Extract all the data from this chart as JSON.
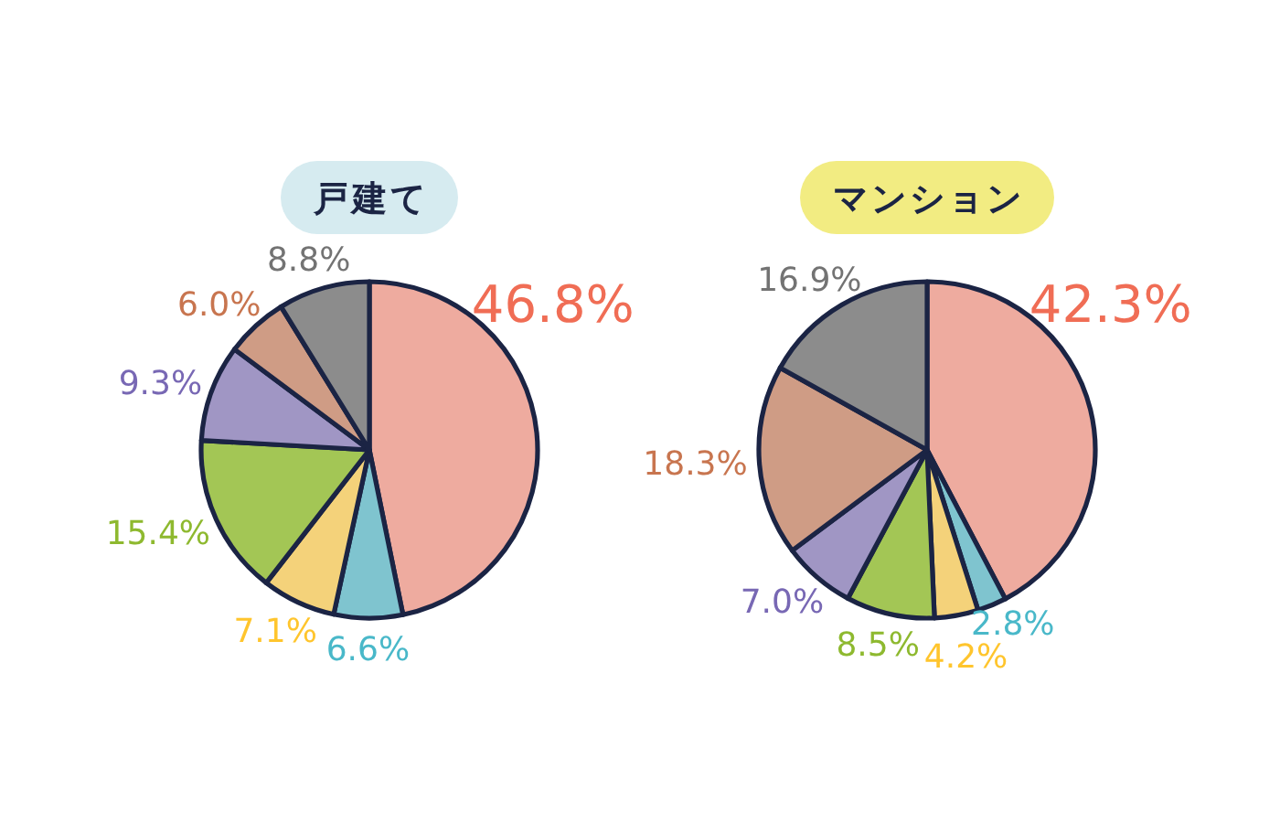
{
  "chart_data": [
    {
      "type": "pie",
      "title": "戸建て",
      "categories": [
        null,
        null,
        null,
        null,
        null,
        null,
        null
      ],
      "values": [
        46.8,
        6.6,
        7.1,
        15.4,
        9.3,
        6.0,
        8.8
      ],
      "colors": [
        "#eeab9f",
        "#7fc4cf",
        "#f4d27a",
        "#a3c655",
        "#a096c4",
        "#cf9c85",
        "#8c8c8c"
      ],
      "value_labels": [
        "46.8%",
        "6.6%",
        "7.1%",
        "15.4%",
        "9.3%",
        "6.0%",
        "8.8%"
      ]
    },
    {
      "type": "pie",
      "title": "マンション",
      "categories": [
        null,
        null,
        null,
        null,
        null,
        null,
        null
      ],
      "values": [
        42.3,
        2.8,
        4.2,
        8.5,
        7.0,
        18.3,
        16.9
      ],
      "colors": [
        "#eeab9f",
        "#7fc4cf",
        "#f4d27a",
        "#a3c655",
        "#a096c4",
        "#cf9c85",
        "#8c8c8c"
      ],
      "value_labels": [
        "42.3%",
        "2.8%",
        "4.2%",
        "8.5%",
        "7.0%",
        "18.3%",
        "16.9%"
      ]
    }
  ]
}
